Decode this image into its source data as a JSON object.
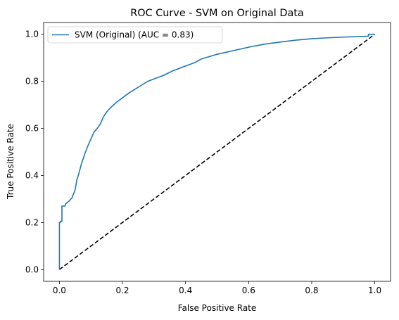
{
  "chart_data": {
    "type": "line",
    "title": "ROC Curve - SVM on Original Data",
    "xlabel": "False Positive Rate",
    "ylabel": "True Positive Rate",
    "xlim": [
      -0.05,
      1.05
    ],
    "ylim": [
      -0.05,
      1.05
    ],
    "xticks": [
      "0.0",
      "0.2",
      "0.4",
      "0.6",
      "0.8",
      "1.0"
    ],
    "yticks": [
      "0.0",
      "0.2",
      "0.4",
      "0.6",
      "0.8",
      "1.0"
    ],
    "grid": false,
    "legend_position": "upper-left",
    "series": [
      {
        "name": "SVM (Original) (AUC = 0.83)",
        "color": "#1f77b4",
        "style": "solid",
        "x": [
          0.0,
          0.0,
          0.003,
          0.003,
          0.008,
          0.008,
          0.018,
          0.02,
          0.03,
          0.04,
          0.05,
          0.055,
          0.06,
          0.07,
          0.08,
          0.09,
          0.1,
          0.11,
          0.12,
          0.13,
          0.14,
          0.15,
          0.16,
          0.18,
          0.2,
          0.22,
          0.25,
          0.28,
          0.3,
          0.33,
          0.36,
          0.4,
          0.43,
          0.45,
          0.5,
          0.55,
          0.6,
          0.65,
          0.7,
          0.75,
          0.8,
          0.85,
          0.9,
          0.95,
          0.98,
          0.98,
          0.995,
          1.0
        ],
        "y": [
          0.0,
          0.2,
          0.2,
          0.205,
          0.205,
          0.27,
          0.27,
          0.28,
          0.29,
          0.305,
          0.34,
          0.38,
          0.4,
          0.45,
          0.49,
          0.525,
          0.555,
          0.585,
          0.6,
          0.62,
          0.65,
          0.67,
          0.685,
          0.71,
          0.73,
          0.75,
          0.775,
          0.8,
          0.81,
          0.825,
          0.845,
          0.865,
          0.88,
          0.895,
          0.915,
          0.93,
          0.945,
          0.958,
          0.967,
          0.975,
          0.981,
          0.985,
          0.988,
          0.99,
          0.992,
          1.0,
          1.0,
          1.0
        ]
      },
      {
        "name": "",
        "color": "#000000",
        "style": "dashed",
        "x": [
          0,
          1
        ],
        "y": [
          0,
          1
        ]
      }
    ]
  }
}
